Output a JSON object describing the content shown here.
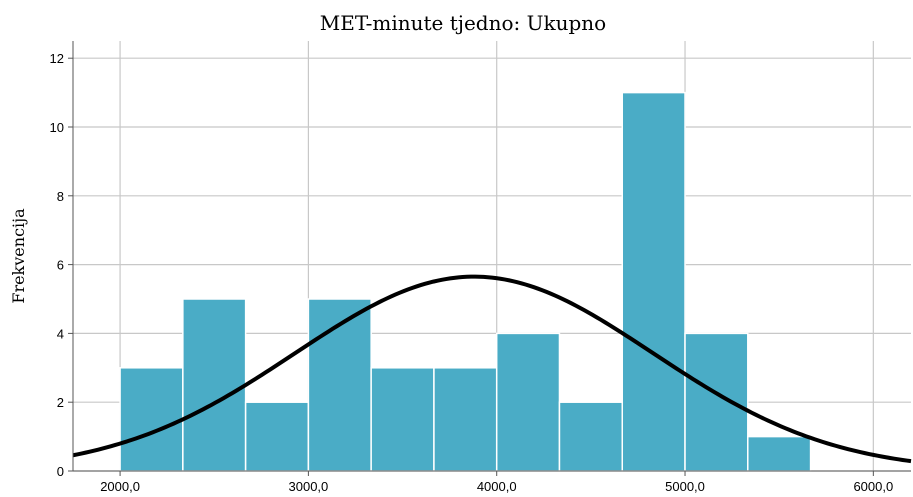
{
  "chart_data": {
    "type": "bar",
    "title": "MET-minute tjedno: Ukupno",
    "xlabel": "",
    "ylabel": "Frekvencija",
    "xlim": [
      1750,
      6200
    ],
    "ylim": [
      0,
      12.5
    ],
    "x_ticks": [
      2000,
      3000,
      4000,
      5000,
      6000
    ],
    "x_tick_labels": [
      "2000,0",
      "3000,0",
      "4000,0",
      "5000,0",
      "6000,0"
    ],
    "y_ticks": [
      0,
      2,
      4,
      6,
      8,
      10,
      12
    ],
    "y_tick_labels": [
      "0",
      "2",
      "4",
      "6",
      "8",
      "10",
      "12"
    ],
    "grid": true,
    "bin_width": 333.3,
    "bins": [
      {
        "start": 2000,
        "end": 2333.3,
        "value": 3
      },
      {
        "start": 2333.3,
        "end": 2666.7,
        "value": 5
      },
      {
        "start": 2666.7,
        "end": 3000,
        "value": 2
      },
      {
        "start": 3000,
        "end": 3333.3,
        "value": 5
      },
      {
        "start": 3333.3,
        "end": 3666.7,
        "value": 3
      },
      {
        "start": 3666.7,
        "end": 4000,
        "value": 3
      },
      {
        "start": 4000,
        "end": 4333.3,
        "value": 4
      },
      {
        "start": 4333.3,
        "end": 4666.7,
        "value": 2
      },
      {
        "start": 4666.7,
        "end": 5000,
        "value": 11
      },
      {
        "start": 5000,
        "end": 5333.3,
        "value": 4
      },
      {
        "start": 5333.3,
        "end": 5666.7,
        "value": 1
      }
    ],
    "normal_curve": {
      "mean": 3880,
      "std": 950,
      "peak": 5.65
    },
    "colors": {
      "bar": "#4aacc6",
      "curve": "#000000",
      "grid": "#c8c8c8"
    }
  }
}
